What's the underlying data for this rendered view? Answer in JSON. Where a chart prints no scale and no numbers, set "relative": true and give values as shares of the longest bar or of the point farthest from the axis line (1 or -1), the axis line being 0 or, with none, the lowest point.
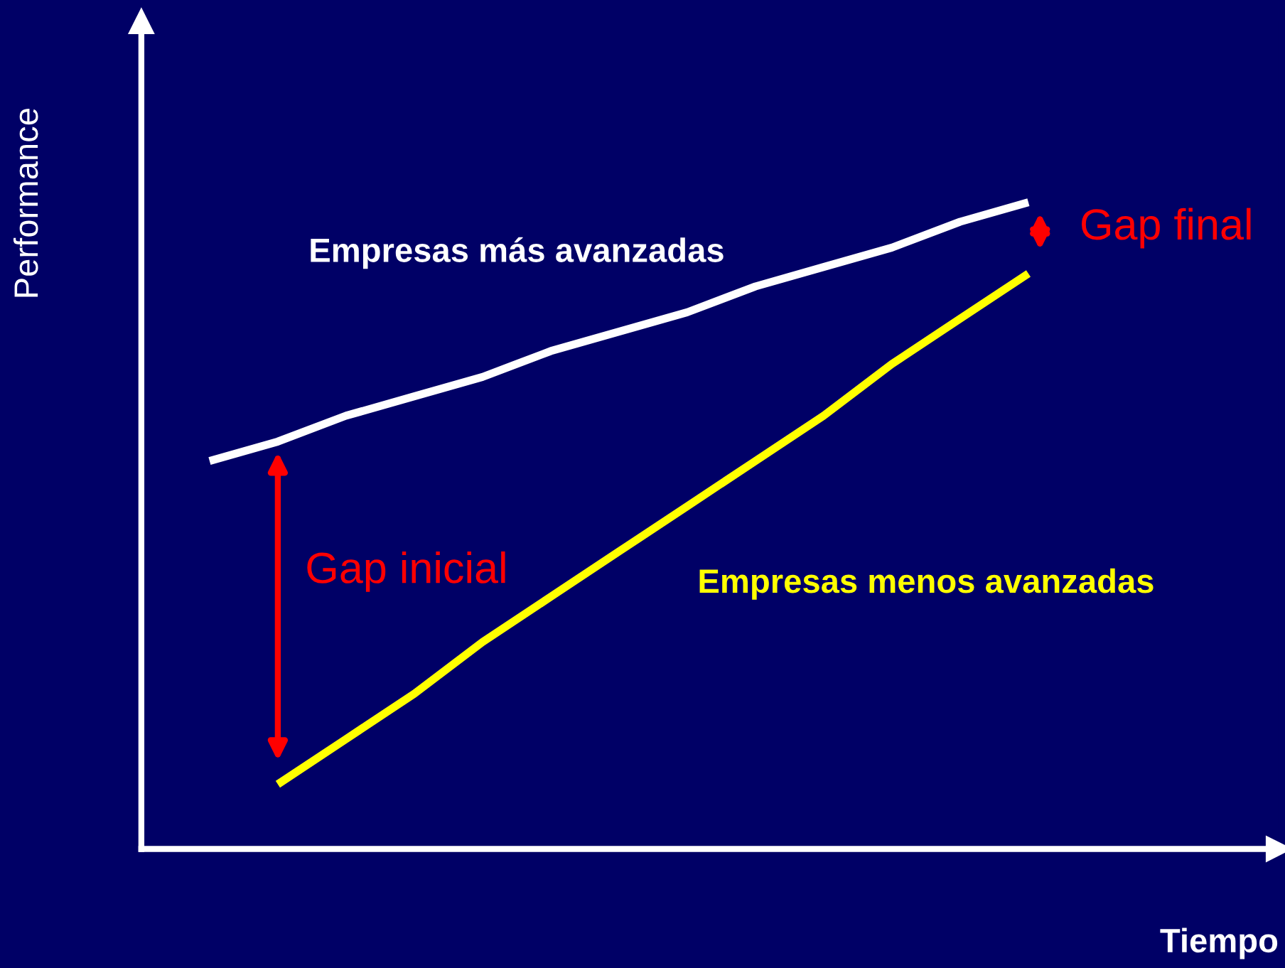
{
  "chart_data": {
    "type": "line",
    "relative": true,
    "xlabel": "Tiempo",
    "ylabel": "Performance",
    "categories": [
      null,
      null,
      null,
      null,
      null,
      null,
      null,
      null,
      null,
      null,
      null,
      null,
      null
    ],
    "series": [
      {
        "name": "Empresas más avanzadas",
        "color": "#ffffff",
        "values": [
          0.6,
          0.63,
          0.67,
          0.7,
          0.73,
          0.77,
          0.8,
          0.83,
          0.87,
          0.9,
          0.93,
          0.97,
          1.0
        ]
      },
      {
        "name": "Empresas menos avanzadas",
        "color": "#ffff00",
        "values": [
          null,
          0.1,
          0.17,
          0.24,
          0.32,
          0.39,
          0.46,
          0.53,
          0.6,
          0.67,
          0.75,
          0.82,
          0.89
        ]
      }
    ],
    "annotations": [
      "Gap inicial",
      "Gap final"
    ],
    "marker": "none",
    "line_style": "solid"
  }
}
